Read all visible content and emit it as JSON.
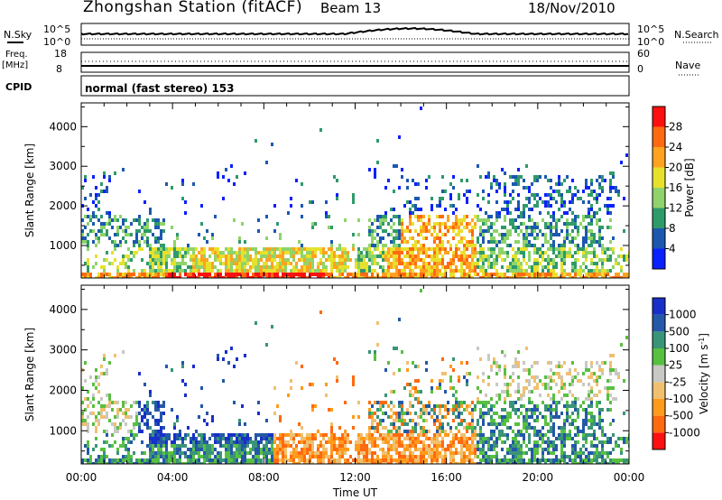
{
  "header": {
    "station": "Zhongshan Station (fitACF)",
    "beam": "Beam 13",
    "date": "18/Nov/2010"
  },
  "top_panels": {
    "nsky_label": "N.Sky",
    "nsearch_label": "N.Search",
    "nsky_ticks": [
      "10^5",
      "10^0"
    ],
    "nsearch_ticks": [
      "10^5",
      "10^0"
    ],
    "freq_label_1": "Freq.",
    "freq_label_2": "[MHz]",
    "freq_ticks": [
      "18",
      "8"
    ],
    "nave_label": "Nave",
    "nave_ticks": [
      "60",
      "0"
    ],
    "cpid_label": "CPID",
    "cpid_text": "normal (fast stereo) 153"
  },
  "chart_data": [
    {
      "type": "heatmap",
      "name": "Power",
      "ylabel": "Slant Range [km]",
      "xlabel": "",
      "ylim": [
        180,
        4600
      ],
      "yticks": [
        "1000",
        "2000",
        "3000",
        "4000"
      ],
      "colorbar_label": "Power [dB]",
      "colorbar_ticks": [
        "4",
        "8",
        "12",
        "16",
        "20",
        "24",
        "28"
      ],
      "colors": [
        "#0a20ff",
        "#1c58b0",
        "#2f9a6a",
        "#8fd46a",
        "#e7e12c",
        "#ffa21f",
        "#ff6a10",
        "#ff1010"
      ]
    },
    {
      "type": "heatmap",
      "name": "Velocity",
      "ylabel": "Slant Range [km]",
      "xlabel": "Time UT",
      "xticks": [
        "00:00",
        "04:00",
        "08:00",
        "12:00",
        "16:00",
        "20:00",
        "00:00"
      ],
      "ylim": [
        180,
        4600
      ],
      "yticks": [
        "1000",
        "2000",
        "3000",
        "4000"
      ],
      "colorbar_label": "Velocity [m s",
      "colorbar_unit_exp": "-1",
      "colorbar_ticks": [
        "1000",
        "500",
        "100",
        "25",
        "-25",
        "-100",
        "-500",
        "-1000"
      ],
      "colors": [
        "#1830c8",
        "#2458a8",
        "#3a9478",
        "#58c040",
        "#c8c8c4",
        "#f0c070",
        "#ff9a1c",
        "#ff6a10",
        "#ff1010"
      ]
    }
  ]
}
